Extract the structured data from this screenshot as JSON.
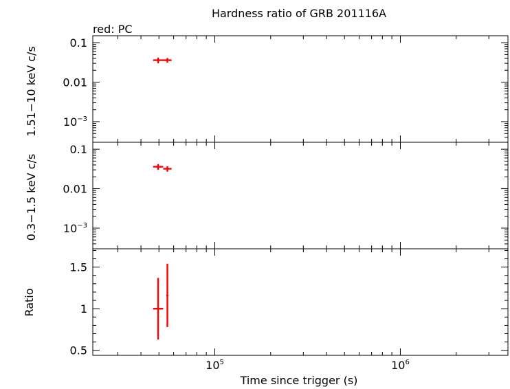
{
  "title": "Hardness ratio of GRB 201116A",
  "legend_note": "red: PC",
  "colors": {
    "series": "#ff0000",
    "frame": "#000000",
    "background": "#ffffff"
  },
  "chart_data": [
    {
      "type": "scatter",
      "panel": "hard",
      "ylabel": "1.51−10 keV c/s",
      "yscale": "log",
      "ylim": [
        0.0003,
        0.15
      ],
      "yticks": [
        {
          "v": 0.1,
          "base": "0.1",
          "exp": ""
        },
        {
          "v": 0.01,
          "base": "0.01",
          "exp": ""
        },
        {
          "v": 0.001,
          "base": "10",
          "exp": "−3"
        }
      ],
      "points": [
        {
          "x": 49500,
          "xlo": 46500,
          "xhi": 52700,
          "y": 0.036,
          "ylo": 0.03,
          "yhi": 0.042
        },
        {
          "x": 55500,
          "xlo": 52700,
          "xhi": 58500,
          "y": 0.036,
          "ylo": 0.031,
          "yhi": 0.041
        }
      ]
    },
    {
      "type": "scatter",
      "panel": "soft",
      "ylabel": "0.3−1.5 keV c/s",
      "yscale": "log",
      "ylim": [
        0.0003,
        0.15
      ],
      "yticks": [
        {
          "v": 0.1,
          "base": "0.1",
          "exp": ""
        },
        {
          "v": 0.01,
          "base": "0.01",
          "exp": ""
        },
        {
          "v": 0.001,
          "base": "10",
          "exp": "−3"
        }
      ],
      "points": [
        {
          "x": 49500,
          "xlo": 46500,
          "xhi": 52700,
          "y": 0.036,
          "ylo": 0.03,
          "yhi": 0.042
        },
        {
          "x": 55500,
          "xlo": 52700,
          "xhi": 58500,
          "y": 0.032,
          "ylo": 0.027,
          "yhi": 0.037
        }
      ]
    },
    {
      "type": "scatter",
      "panel": "ratio",
      "ylabel": "Ratio",
      "yscale": "linear",
      "ylim": [
        0.44,
        1.72
      ],
      "yticks": [
        {
          "v": 0.5,
          "base": "0.5",
          "exp": ""
        },
        {
          "v": 1,
          "base": "1",
          "exp": ""
        },
        {
          "v": 1.5,
          "base": "1.5",
          "exp": ""
        }
      ],
      "points": [
        {
          "x": 49500,
          "xlo": 46500,
          "xhi": 52700,
          "y": 1.0,
          "ylo": 0.63,
          "yhi": 1.37
        },
        {
          "x": 55500,
          "xlo": 55300,
          "xhi": 55700,
          "y": 1.16,
          "ylo": 0.78,
          "yhi": 1.54
        }
      ]
    }
  ],
  "xaxis": {
    "label": "Time since trigger (s)",
    "scale": "log",
    "xlim": [
      22000,
      3800000
    ],
    "ticklabels": [
      {
        "v": 100000,
        "base": "10",
        "exp": "5"
      },
      {
        "v": 1000000,
        "base": "10",
        "exp": "6"
      }
    ]
  }
}
